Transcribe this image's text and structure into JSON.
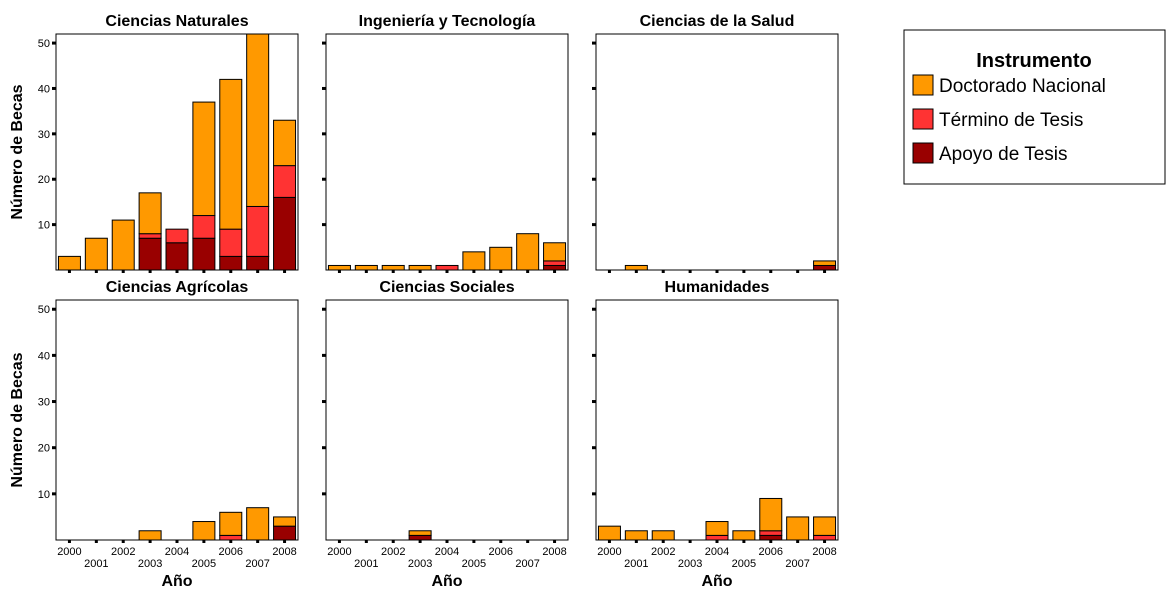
{
  "chart_data": {
    "type": "bar",
    "stacked": true,
    "ylabel": "Número de Becas",
    "xlabel": "Año",
    "ylim": [
      0,
      52
    ],
    "yticks": [
      10,
      20,
      30,
      40,
      50
    ],
    "categories": [
      "2000",
      "2001",
      "2002",
      "2003",
      "2004",
      "2005",
      "2006",
      "2007",
      "2008"
    ],
    "legend": {
      "title": "Instrumento",
      "position": "top-right",
      "entries": [
        "Doctorado Nacional",
        "Término de Tesis",
        "Apoyo de Tesis"
      ]
    },
    "colors": {
      "Doctorado Nacional": "#FF9900",
      "Término de Tesis": "#FF3333",
      "Apoyo de Tesis": "#990000"
    },
    "panels": [
      {
        "title": "Ciencias Naturales",
        "series": [
          {
            "name": "Apoyo de Tesis",
            "values": [
              0,
              0,
              0,
              7,
              6,
              7,
              3,
              3,
              16
            ]
          },
          {
            "name": "Término de Tesis",
            "values": [
              0,
              0,
              0,
              1,
              3,
              5,
              6,
              11,
              7
            ]
          },
          {
            "name": "Doctorado Nacional",
            "values": [
              3,
              7,
              11,
              9,
              0,
              25,
              33,
              38,
              10
            ]
          }
        ]
      },
      {
        "title": "Ingeniería y Tecnología",
        "series": [
          {
            "name": "Apoyo de Tesis",
            "values": [
              0,
              0,
              0,
              0,
              0,
              0,
              0,
              0,
              1
            ]
          },
          {
            "name": "Término de Tesis",
            "values": [
              0,
              0,
              0,
              0,
              1,
              0,
              0,
              0,
              1
            ]
          },
          {
            "name": "Doctorado Nacional",
            "values": [
              1,
              1,
              1,
              1,
              0,
              4,
              5,
              8,
              4
            ]
          }
        ]
      },
      {
        "title": "Ciencias de la Salud",
        "series": [
          {
            "name": "Apoyo de Tesis",
            "values": [
              0,
              0,
              0,
              0,
              0,
              0,
              0,
              0,
              1
            ]
          },
          {
            "name": "Término de Tesis",
            "values": [
              0,
              0,
              0,
              0,
              0,
              0,
              0,
              0,
              0
            ]
          },
          {
            "name": "Doctorado Nacional",
            "values": [
              0,
              1,
              0,
              0,
              0,
              0,
              0,
              0,
              1
            ]
          }
        ]
      },
      {
        "title": "Ciencias Agrícolas",
        "series": [
          {
            "name": "Apoyo de Tesis",
            "values": [
              0,
              0,
              0,
              0,
              0,
              0,
              0,
              0,
              3
            ]
          },
          {
            "name": "Término de Tesis",
            "values": [
              0,
              0,
              0,
              0,
              0,
              0,
              1,
              0,
              0
            ]
          },
          {
            "name": "Doctorado Nacional",
            "values": [
              0,
              0,
              0,
              2,
              0,
              4,
              5,
              7,
              2
            ]
          }
        ]
      },
      {
        "title": "Ciencias Sociales",
        "series": [
          {
            "name": "Apoyo de Tesis",
            "values": [
              0,
              0,
              0,
              1,
              0,
              0,
              0,
              0,
              0
            ]
          },
          {
            "name": "Término de Tesis",
            "values": [
              0,
              0,
              0,
              0,
              0,
              0,
              0,
              0,
              0
            ]
          },
          {
            "name": "Doctorado Nacional",
            "values": [
              0,
              0,
              0,
              1,
              0,
              0,
              0,
              0,
              0
            ]
          }
        ]
      },
      {
        "title": "Humanidades",
        "series": [
          {
            "name": "Apoyo de Tesis",
            "values": [
              0,
              0,
              0,
              0,
              0,
              0,
              1,
              0,
              0
            ]
          },
          {
            "name": "Término de Tesis",
            "values": [
              0,
              0,
              0,
              0,
              1,
              0,
              1,
              0,
              1
            ]
          },
          {
            "name": "Doctorado Nacional",
            "values": [
              3,
              2,
              2,
              0,
              3,
              2,
              7,
              5,
              4
            ]
          }
        ]
      }
    ]
  }
}
